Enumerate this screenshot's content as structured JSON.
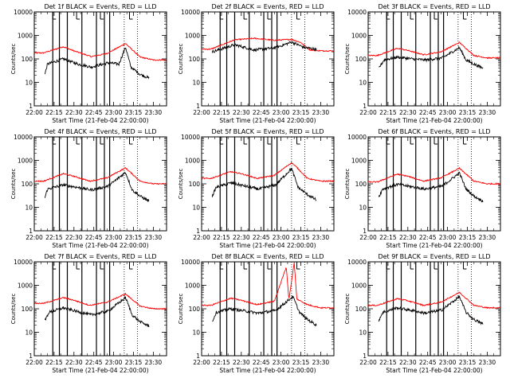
{
  "figure": {
    "xlabel": "Start Time (21-Feb-04 22:00:00)",
    "ylabel": "Counts/sec",
    "xticks": [
      "22:00",
      "22:15",
      "22:30",
      "22:45",
      "23:00",
      "23:15",
      "23:30"
    ],
    "yticks": [
      "1",
      "10",
      "100",
      "1000",
      "10000"
    ],
    "colors": {
      "events": "#000000",
      "lld": "#ff0000",
      "axes": "#000000",
      "background": "#ffffff"
    }
  },
  "chart_data": [
    {
      "type": "line",
      "title": "Det 1f BLACK = Events, RED = LLD",
      "xlim_minutes": [
        0,
        100
      ],
      "ylim": [
        1,
        10000
      ],
      "yscale": "log",
      "x_unit": "minutes after 22:00:00",
      "series": [
        {
          "color": "#ff0000",
          "y_profile": [
            [
              7,
              180
            ],
            [
              22,
              330
            ],
            [
              30,
              220
            ],
            [
              43,
              125
            ],
            [
              55,
              170
            ],
            [
              69,
              450
            ],
            [
              80,
              120
            ],
            [
              90,
              90
            ]
          ]
        },
        {
          "color": "#000000",
          "x_range": [
            8,
            87
          ],
          "y_profile": [
            [
              8,
              22
            ],
            [
              10,
              60
            ],
            [
              22,
              100
            ],
            [
              33,
              60
            ],
            [
              43,
              45
            ],
            [
              56,
              68
            ],
            [
              64,
              60
            ],
            [
              69,
              320
            ],
            [
              73,
              45
            ],
            [
              80,
              22
            ],
            [
              87,
              15
            ]
          ]
        }
      ],
      "vlines": {
        "solid": [
          14,
          19,
          25,
          36,
          47,
          53,
          57
        ],
        "dotted": [
          68,
          78
        ],
        "ticks": [
          14,
          32,
          50,
          72
        ]
      }
    },
    {
      "type": "line",
      "title": "Det 2f BLACK = Events, RED = LLD",
      "xlim_minutes": [
        0,
        100
      ],
      "ylim": [
        1,
        10000
      ],
      "yscale": "log",
      "x_unit": "minutes after 22:00:00",
      "series": [
        {
          "color": "#ff0000",
          "y_profile": [
            [
              7,
              260
            ],
            [
              25,
              650
            ],
            [
              40,
              750
            ],
            [
              55,
              620
            ],
            [
              68,
              680
            ],
            [
              75,
              500
            ],
            [
              82,
              240
            ],
            [
              90,
              220
            ]
          ]
        },
        {
          "color": "#000000",
          "x_range": [
            8,
            87
          ],
          "y_profile": [
            [
              8,
              200
            ],
            [
              25,
              400
            ],
            [
              40,
              240
            ],
            [
              56,
              300
            ],
            [
              68,
              520
            ],
            [
              78,
              300
            ],
            [
              87,
              260
            ]
          ]
        }
      ],
      "vlines": {
        "solid": [
          14,
          19,
          25,
          36,
          47,
          53,
          57
        ],
        "dotted": [
          68,
          78
        ],
        "ticks": [
          14,
          32,
          50,
          72
        ]
      }
    },
    {
      "type": "line",
      "title": "Det 3f BLACK = Events, RED = LLD",
      "xlim_minutes": [
        0,
        100
      ],
      "ylim": [
        1,
        10000
      ],
      "yscale": "log",
      "x_unit": "minutes after 22:00:00",
      "series": [
        {
          "color": "#ff0000",
          "y_profile": [
            [
              7,
              140
            ],
            [
              22,
              280
            ],
            [
              30,
              230
            ],
            [
              42,
              150
            ],
            [
              55,
              200
            ],
            [
              69,
              500
            ],
            [
              80,
              140
            ],
            [
              90,
              110
            ]
          ]
        },
        {
          "color": "#000000",
          "x_range": [
            8,
            87
          ],
          "y_profile": [
            [
              8,
              40
            ],
            [
              12,
              90
            ],
            [
              22,
              120
            ],
            [
              33,
              100
            ],
            [
              43,
              90
            ],
            [
              56,
              110
            ],
            [
              69,
              300
            ],
            [
              74,
              90
            ],
            [
              80,
              60
            ],
            [
              87,
              40
            ]
          ]
        }
      ],
      "vlines": {
        "solid": [
          14,
          19,
          25,
          36,
          47,
          53,
          57
        ],
        "dotted": [
          68,
          78
        ],
        "ticks": [
          14,
          32,
          50,
          72
        ]
      }
    },
    {
      "type": "line",
      "title": "Det 4f BLACK = Events, RED = LLD",
      "xlim_minutes": [
        0,
        100
      ],
      "ylim": [
        1,
        10000
      ],
      "yscale": "log",
      "x_unit": "minutes after 22:00:00",
      "series": [
        {
          "color": "#ff0000",
          "y_profile": [
            [
              7,
              130
            ],
            [
              22,
              270
            ],
            [
              30,
              210
            ],
            [
              42,
              130
            ],
            [
              55,
              180
            ],
            [
              69,
              480
            ],
            [
              80,
              130
            ],
            [
              90,
              100
            ]
          ]
        },
        {
          "color": "#000000",
          "x_range": [
            8,
            87
          ],
          "y_profile": [
            [
              8,
              25
            ],
            [
              10,
              60
            ],
            [
              22,
              90
            ],
            [
              33,
              70
            ],
            [
              43,
              55
            ],
            [
              56,
              80
            ],
            [
              69,
              310
            ],
            [
              74,
              55
            ],
            [
              80,
              30
            ],
            [
              87,
              18
            ]
          ]
        }
      ],
      "vlines": {
        "solid": [
          14,
          19,
          25,
          36,
          47,
          53,
          57
        ],
        "dotted": [
          68,
          78
        ],
        "ticks": [
          14,
          32,
          50,
          72
        ]
      }
    },
    {
      "type": "line",
      "title": "Det 5f BLACK = Events, RED = LLD",
      "xlim_minutes": [
        0,
        100
      ],
      "ylim": [
        1,
        10000
      ],
      "yscale": "log",
      "x_unit": "minutes after 22:00:00",
      "series": [
        {
          "color": "#ff0000",
          "y_profile": [
            [
              7,
              170
            ],
            [
              22,
              330
            ],
            [
              30,
              270
            ],
            [
              42,
              170
            ],
            [
              55,
              230
            ],
            [
              68,
              800
            ],
            [
              72,
              500
            ],
            [
              80,
              170
            ],
            [
              90,
              130
            ]
          ]
        },
        {
          "color": "#000000",
          "x_range": [
            8,
            87
          ],
          "y_profile": [
            [
              8,
              30
            ],
            [
              11,
              70
            ],
            [
              22,
              110
            ],
            [
              33,
              80
            ],
            [
              43,
              60
            ],
            [
              56,
              90
            ],
            [
              68,
              450
            ],
            [
              73,
              70
            ],
            [
              80,
              35
            ],
            [
              87,
              20
            ]
          ]
        }
      ],
      "vlines": {
        "solid": [
          14,
          19,
          25,
          36,
          47,
          53,
          57
        ],
        "dotted": [
          68,
          78
        ],
        "ticks": [
          14,
          32,
          50,
          72
        ]
      }
    },
    {
      "type": "line",
      "title": "Det 6f BLACK = Events, RED = LLD",
      "xlim_minutes": [
        0,
        100
      ],
      "ylim": [
        1,
        10000
      ],
      "yscale": "log",
      "x_unit": "minutes after 22:00:00",
      "series": [
        {
          "color": "#ff0000",
          "y_profile": [
            [
              7,
              120
            ],
            [
              22,
              260
            ],
            [
              30,
              210
            ],
            [
              42,
              130
            ],
            [
              55,
              180
            ],
            [
              69,
              460
            ],
            [
              80,
              130
            ],
            [
              90,
              100
            ]
          ]
        },
        {
          "color": "#000000",
          "x_range": [
            8,
            87
          ],
          "y_profile": [
            [
              8,
              28
            ],
            [
              11,
              60
            ],
            [
              22,
              95
            ],
            [
              33,
              75
            ],
            [
              43,
              60
            ],
            [
              56,
              80
            ],
            [
              69,
              290
            ],
            [
              74,
              60
            ],
            [
              80,
              30
            ],
            [
              87,
              18
            ]
          ]
        }
      ],
      "vlines": {
        "solid": [
          14,
          19,
          25,
          36,
          47,
          53,
          57
        ],
        "dotted": [
          68,
          78
        ],
        "ticks": [
          14,
          32,
          50,
          72
        ]
      }
    },
    {
      "type": "line",
      "title": "Det 7f BLACK = Events, RED = LLD",
      "xlim_minutes": [
        0,
        100
      ],
      "ylim": [
        1,
        10000
      ],
      "yscale": "log",
      "x_unit": "minutes after 22:00:00",
      "series": [
        {
          "color": "#ff0000",
          "y_profile": [
            [
              7,
              170
            ],
            [
              22,
              300
            ],
            [
              30,
              230
            ],
            [
              42,
              140
            ],
            [
              55,
              190
            ],
            [
              69,
              430
            ],
            [
              80,
              130
            ],
            [
              90,
              100
            ]
          ]
        },
        {
          "color": "#000000",
          "x_range": [
            8,
            87
          ],
          "y_profile": [
            [
              8,
              30
            ],
            [
              11,
              70
            ],
            [
              22,
              110
            ],
            [
              33,
              75
            ],
            [
              43,
              55
            ],
            [
              56,
              80
            ],
            [
              69,
              300
            ],
            [
              74,
              55
            ],
            [
              80,
              28
            ],
            [
              87,
              18
            ]
          ]
        }
      ],
      "vlines": {
        "solid": [
          14,
          19,
          25,
          36,
          47,
          53,
          57
        ],
        "dotted": [
          68,
          78
        ],
        "ticks": [
          14,
          32,
          50,
          72
        ]
      }
    },
    {
      "type": "line",
      "title": "Det 8f BLACK = Events, RED = LLD",
      "xlim_minutes": [
        0,
        100
      ],
      "ylim": [
        1,
        10000
      ],
      "yscale": "log",
      "x_unit": "minutes after 22:00:00",
      "series": [
        {
          "color": "#ff0000",
          "y_profile": [
            [
              7,
              140
            ],
            [
              22,
              280
            ],
            [
              30,
              230
            ],
            [
              42,
              150
            ],
            [
              55,
              210
            ],
            [
              64,
              6000
            ],
            [
              66,
              250
            ],
            [
              70,
              9000
            ],
            [
              72,
              260
            ],
            [
              80,
              150
            ],
            [
              90,
              110
            ]
          ]
        },
        {
          "color": "#000000",
          "x_range": [
            8,
            87
          ],
          "y_profile": [
            [
              8,
              28
            ],
            [
              11,
              70
            ],
            [
              22,
              100
            ],
            [
              33,
              80
            ],
            [
              43,
              65
            ],
            [
              56,
              85
            ],
            [
              69,
              330
            ],
            [
              74,
              70
            ],
            [
              80,
              35
            ],
            [
              87,
              20
            ]
          ]
        }
      ],
      "vlines": {
        "solid": [
          14,
          19,
          25,
          36,
          47,
          53,
          57
        ],
        "dotted": [
          68,
          78
        ],
        "ticks": [
          14,
          32,
          50,
          72
        ]
      }
    },
    {
      "type": "line",
      "title": "Det 9f BLACK = Events, RED = LLD",
      "xlim_minutes": [
        0,
        100
      ],
      "ylim": [
        1,
        10000
      ],
      "yscale": "log",
      "x_unit": "minutes after 22:00:00",
      "series": [
        {
          "color": "#ff0000",
          "y_profile": [
            [
              7,
              140
            ],
            [
              22,
              270
            ],
            [
              30,
              220
            ],
            [
              42,
              140
            ],
            [
              55,
              190
            ],
            [
              69,
              500
            ],
            [
              80,
              140
            ],
            [
              90,
              110
            ]
          ]
        },
        {
          "color": "#000000",
          "x_range": [
            8,
            87
          ],
          "y_profile": [
            [
              8,
              32
            ],
            [
              11,
              70
            ],
            [
              22,
              110
            ],
            [
              33,
              85
            ],
            [
              43,
              65
            ],
            [
              56,
              90
            ],
            [
              69,
              330
            ],
            [
              74,
              70
            ],
            [
              80,
              35
            ],
            [
              87,
              22
            ]
          ]
        }
      ],
      "vlines": {
        "solid": [
          14,
          19,
          25,
          36,
          47,
          53,
          57
        ],
        "dotted": [
          68,
          78
        ],
        "ticks": [
          14,
          32,
          50,
          72
        ]
      }
    }
  ]
}
